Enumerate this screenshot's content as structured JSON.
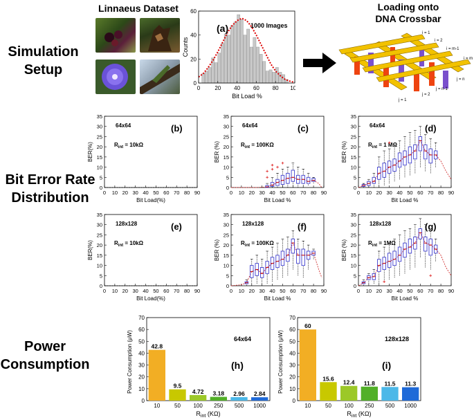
{
  "sections": {
    "simulation_l1": "Simulation",
    "simulation_l2": "Setup",
    "ber_l1": "Bit Error Rate",
    "ber_l2": "Distribution",
    "power_l1": "Power",
    "power_l2": "Consumption"
  },
  "headers": {
    "dataset": "Linnaeus Dataset",
    "crossbar_l1": "Loading onto",
    "crossbar_l2": "DNA Crossbar"
  },
  "crossbar_labels": {
    "i1": "i = 1",
    "i2": "i = 2",
    "im1": "i = m-1",
    "im": "i = m",
    "j1": "j = 1",
    "j2": "j = 2",
    "jn1": "j = n-1",
    "jn": "j = n"
  },
  "colors": {
    "hist_bar": "#c8c8c8",
    "hist_fit": "#dd0000",
    "box": "#4040d0",
    "median": "#c00000",
    "outlier": "#e03030",
    "trend": "#d03030",
    "crossbar_yellow": "#f2c200",
    "crossbar_red": "#ee4410",
    "crossbar_purple": "#7a50cc"
  },
  "chart_data": [
    {
      "id": "a",
      "type": "bar",
      "label": "(a)",
      "annotation": "1000 Images",
      "xlabel": "Bit Load %",
      "ylabel": "Counts",
      "xlim": [
        0,
        100
      ],
      "ylim": [
        0,
        60
      ],
      "xticks": [
        "0",
        "20",
        "40",
        "60",
        "80",
        "100"
      ],
      "yticks": [
        "0",
        "20",
        "40",
        "60"
      ],
      "bin_width": 3.33,
      "bin_left": [
        0,
        3.33,
        6.67,
        10,
        13.33,
        16.67,
        20,
        23.33,
        26.67,
        30,
        33.33,
        36.67,
        40,
        43.33,
        46.67,
        50,
        53.33,
        56.67,
        60,
        63.33,
        66.67,
        70,
        73.33,
        76.67,
        80,
        83.33,
        86.67,
        90,
        93.33,
        96.67
      ],
      "counts": [
        0,
        8,
        10,
        13,
        21,
        17,
        25,
        33,
        41,
        40,
        48,
        51,
        57,
        53,
        40,
        45,
        30,
        38,
        30,
        24,
        18,
        10,
        11,
        9,
        13,
        9,
        7,
        3,
        0,
        0
      ],
      "fit_x": [
        0,
        5,
        10,
        15,
        20,
        25,
        30,
        35,
        40,
        45,
        50,
        55,
        60,
        65,
        70,
        75,
        80,
        85,
        90,
        95,
        100
      ],
      "fit_y": [
        5,
        8,
        13,
        19,
        26,
        34,
        42,
        48,
        52,
        54,
        52,
        47,
        40,
        32,
        24,
        16,
        10,
        6,
        3,
        1.5,
        0.5
      ]
    },
    {
      "id": "b",
      "type": "box",
      "label": "(b)",
      "size": "64x64",
      "rint_sub": "int",
      "rint_value": " = 10kΩ",
      "xlabel": "Bit Load(%)",
      "ylabel": "BER(%)",
      "xlim": [
        0,
        90
      ],
      "ylim": [
        0,
        35
      ],
      "xticks": [
        "0",
        "10",
        "20",
        "30",
        "40",
        "50",
        "60",
        "70",
        "80",
        "90"
      ],
      "yticks": [
        "0",
        "5",
        "10",
        "15",
        "20",
        "25",
        "30",
        "35"
      ],
      "boxes": [],
      "trend_x": [
        0,
        90
      ],
      "trend_y": [
        0,
        0
      ]
    },
    {
      "id": "c",
      "type": "box",
      "label": "(c)",
      "size": "64x64",
      "rint_sub": "int",
      "rint_value": " = 100KΩ",
      "xlabel": "Bit Load %",
      "ylabel": "BER (%)",
      "xlim": [
        0,
        90
      ],
      "ylim": [
        0,
        35
      ],
      "xticks": [
        "0",
        "10",
        "20",
        "30",
        "40",
        "50",
        "60",
        "70",
        "80",
        "90"
      ],
      "yticks": [
        "0",
        "5",
        "10",
        "15",
        "20",
        "25",
        "30",
        "35"
      ],
      "boxes": [
        {
          "x": 35,
          "q1": 0,
          "med": 0.3,
          "q3": 1,
          "lo": 0,
          "hi": 2,
          "out": [
            5,
            8
          ]
        },
        {
          "x": 40,
          "q1": 0.5,
          "med": 1.2,
          "q3": 2.5,
          "lo": 0,
          "hi": 5,
          "out": [
            9,
            11
          ]
        },
        {
          "x": 45,
          "q1": 1,
          "med": 2.5,
          "q3": 4,
          "lo": 0,
          "hi": 7,
          "out": [
            10
          ]
        },
        {
          "x": 50,
          "q1": 1.5,
          "med": 3.5,
          "q3": 6,
          "lo": 0,
          "hi": 9,
          "out": [
            12
          ]
        },
        {
          "x": 55,
          "q1": 2,
          "med": 4.5,
          "q3": 7,
          "lo": 0,
          "hi": 10,
          "out": []
        },
        {
          "x": 60,
          "q1": 3,
          "med": 5,
          "q3": 8.5,
          "lo": 0,
          "hi": 12,
          "out": []
        },
        {
          "x": 65,
          "q1": 2,
          "med": 4,
          "q3": 6,
          "lo": 0,
          "hi": 10,
          "out": []
        },
        {
          "x": 70,
          "q1": 2,
          "med": 4,
          "q3": 6,
          "lo": 0,
          "hi": 9,
          "out": []
        },
        {
          "x": 75,
          "q1": 2,
          "med": 3,
          "q3": 5,
          "lo": 1,
          "hi": 7,
          "out": []
        },
        {
          "x": 80,
          "q1": 3,
          "med": 3.5,
          "q3": 4.5,
          "lo": 2,
          "hi": 5,
          "out": []
        }
      ],
      "trend_x": [
        0,
        25,
        35,
        40,
        45,
        50,
        55,
        60,
        65,
        70,
        75,
        80,
        85,
        88
      ],
      "trend_y": [
        0,
        0,
        0.3,
        1.2,
        2.5,
        3.5,
        4.5,
        5,
        4,
        4,
        3,
        3.5,
        2,
        0
      ]
    },
    {
      "id": "d",
      "type": "box",
      "label": "(d)",
      "size": "64x64",
      "rint_sub": "int",
      "rint_value": " = 1 MΩ",
      "xlabel": "Bit Load %",
      "ylabel": "BER (%)",
      "xlim": [
        0,
        90
      ],
      "ylim": [
        0,
        35
      ],
      "xticks": [
        "0",
        "10",
        "20",
        "30",
        "40",
        "50",
        "60",
        "70",
        "80",
        "90"
      ],
      "yticks": [
        "0",
        "5",
        "10",
        "15",
        "20",
        "25",
        "30",
        "35"
      ],
      "boxes": [
        {
          "x": 5,
          "q1": 0.5,
          "med": 1,
          "q3": 1.5,
          "lo": 0,
          "hi": 2,
          "out": []
        },
        {
          "x": 10,
          "q1": 1,
          "med": 2,
          "q3": 3,
          "lo": 0,
          "hi": 4,
          "out": []
        },
        {
          "x": 15,
          "q1": 2,
          "med": 3,
          "q3": 5,
          "lo": 0,
          "hi": 7,
          "out": []
        },
        {
          "x": 20,
          "q1": 4,
          "med": 7,
          "q3": 10,
          "lo": 0,
          "hi": 15,
          "out": []
        },
        {
          "x": 25,
          "q1": 5,
          "med": 8,
          "q3": 12,
          "lo": 1,
          "hi": 18,
          "out": []
        },
        {
          "x": 30,
          "q1": 7,
          "med": 10,
          "q3": 13,
          "lo": 2,
          "hi": 19,
          "out": [
            22
          ]
        },
        {
          "x": 35,
          "q1": 8,
          "med": 11,
          "q3": 14,
          "lo": 3,
          "hi": 21,
          "out": []
        },
        {
          "x": 40,
          "q1": 10,
          "med": 13,
          "q3": 17,
          "lo": 4,
          "hi": 23,
          "out": []
        },
        {
          "x": 45,
          "q1": 11,
          "med": 15,
          "q3": 18,
          "lo": 5,
          "hi": 25,
          "out": []
        },
        {
          "x": 50,
          "q1": 12,
          "med": 16,
          "q3": 20,
          "lo": 6,
          "hi": 27,
          "out": []
        },
        {
          "x": 55,
          "q1": 14,
          "med": 18,
          "q3": 21,
          "lo": 7,
          "hi": 28,
          "out": []
        },
        {
          "x": 60,
          "q1": 18,
          "med": 23,
          "q3": 25,
          "lo": 10,
          "hi": 30,
          "out": []
        },
        {
          "x": 65,
          "q1": 14,
          "med": 18,
          "q3": 21,
          "lo": 8,
          "hi": 26,
          "out": []
        },
        {
          "x": 70,
          "q1": 12,
          "med": 16,
          "q3": 19,
          "lo": 7,
          "hi": 24,
          "out": []
        },
        {
          "x": 75,
          "q1": 14,
          "med": 16,
          "q3": 18,
          "lo": 10,
          "hi": 22,
          "out": []
        }
      ],
      "trend_x": [
        0,
        5,
        10,
        15,
        20,
        25,
        30,
        35,
        40,
        45,
        50,
        55,
        60,
        65,
        70,
        75,
        80,
        85,
        90
      ],
      "trend_y": [
        0,
        1,
        2,
        3,
        7,
        8,
        10,
        11,
        13,
        15,
        16,
        18,
        23,
        18,
        16,
        16,
        13,
        8,
        4
      ]
    },
    {
      "id": "e",
      "type": "box",
      "label": "(e)",
      "size": "128x128",
      "rint_sub": "int",
      "rint_value": " = 10kΩ",
      "xlabel": "Bit Load(%)",
      "ylabel": "BER(%)",
      "xlim": [
        0,
        90
      ],
      "ylim": [
        0,
        35
      ],
      "xticks": [
        "0",
        "10",
        "20",
        "30",
        "40",
        "50",
        "60",
        "70",
        "80",
        "90"
      ],
      "yticks": [
        "0",
        "5",
        "10",
        "15",
        "20",
        "25",
        "30",
        "35"
      ],
      "boxes": [],
      "trend_x": [
        0,
        90
      ],
      "trend_y": [
        0,
        0
      ]
    },
    {
      "id": "f",
      "type": "box",
      "label": "(f)",
      "size": "128x128",
      "rint_sub": "int",
      "rint_value": " = 100KΩ",
      "xlabel": "Bit Load %",
      "ylabel": "BER (%)",
      "xlim": [
        0,
        90
      ],
      "ylim": [
        0,
        35
      ],
      "xticks": [
        "0",
        "10",
        "20",
        "30",
        "40",
        "50",
        "60",
        "70",
        "80",
        "90"
      ],
      "yticks": [
        "0",
        "5",
        "10",
        "15",
        "20",
        "25",
        "30",
        "35"
      ],
      "boxes": [
        {
          "x": 15,
          "q1": 1,
          "med": 1.5,
          "q3": 2,
          "lo": 0,
          "hi": 3,
          "out": []
        },
        {
          "x": 20,
          "q1": 4,
          "med": 7,
          "q3": 10,
          "lo": 0,
          "hi": 13,
          "out": []
        },
        {
          "x": 25,
          "q1": 5,
          "med": 8,
          "q3": 11,
          "lo": 1,
          "hi": 15,
          "out": []
        },
        {
          "x": 30,
          "q1": 4,
          "med": 6,
          "q3": 9,
          "lo": 0,
          "hi": 13,
          "out": []
        },
        {
          "x": 35,
          "q1": 6,
          "med": 9,
          "q3": 12,
          "lo": 1,
          "hi": 17,
          "out": []
        },
        {
          "x": 40,
          "q1": 8,
          "med": 11,
          "q3": 14,
          "lo": 2,
          "hi": 19,
          "out": []
        },
        {
          "x": 45,
          "q1": 9,
          "med": 12,
          "q3": 15,
          "lo": 3,
          "hi": 21,
          "out": []
        },
        {
          "x": 50,
          "q1": 10,
          "med": 13,
          "q3": 17,
          "lo": 4,
          "hi": 23,
          "out": []
        },
        {
          "x": 55,
          "q1": 12,
          "med": 15,
          "q3": 18,
          "lo": 5,
          "hi": 24,
          "out": []
        },
        {
          "x": 60,
          "q1": 16,
          "med": 21,
          "q3": 23,
          "lo": 8,
          "hi": 27,
          "out": []
        },
        {
          "x": 65,
          "q1": 11,
          "med": 15,
          "q3": 18,
          "lo": 5,
          "hi": 23,
          "out": []
        },
        {
          "x": 70,
          "q1": 10,
          "med": 15,
          "q3": 18,
          "lo": 4,
          "hi": 22,
          "out": []
        },
        {
          "x": 75,
          "q1": 13,
          "med": 15,
          "q3": 17,
          "lo": 8,
          "hi": 20,
          "out": []
        },
        {
          "x": 80,
          "q1": 15,
          "med": 16,
          "q3": 17,
          "lo": 13,
          "hi": 18,
          "out": []
        }
      ],
      "trend_x": [
        0,
        10,
        15,
        20,
        25,
        30,
        35,
        40,
        45,
        50,
        55,
        60,
        65,
        70,
        75,
        80,
        85,
        88
      ],
      "trend_y": [
        0,
        0.5,
        1.5,
        7,
        8,
        6,
        9,
        11,
        12,
        13,
        15,
        21,
        15,
        15,
        15,
        16,
        8,
        4
      ]
    },
    {
      "id": "g",
      "type": "box",
      "label": "(g)",
      "size": "128x128",
      "rint_sub": "int",
      "rint_value": " = 1MΩ",
      "xlabel": "Bit Load %",
      "ylabel": "BER (%)",
      "xlim": [
        0,
        90
      ],
      "ylim": [
        0,
        35
      ],
      "xticks": [
        "0",
        "10",
        "20",
        "30",
        "40",
        "50",
        "60",
        "70",
        "80",
        "90"
      ],
      "yticks": [
        "0",
        "5",
        "10",
        "15",
        "20",
        "25",
        "30",
        "35"
      ],
      "boxes": [
        {
          "x": 5,
          "q1": 1,
          "med": 1.5,
          "q3": 2,
          "lo": 0,
          "hi": 3,
          "out": []
        },
        {
          "x": 10,
          "q1": 3,
          "med": 4,
          "q3": 5,
          "lo": 1,
          "hi": 6,
          "out": []
        },
        {
          "x": 15,
          "q1": 3,
          "med": 4.5,
          "q3": 6,
          "lo": 1,
          "hi": 8,
          "out": []
        },
        {
          "x": 20,
          "q1": 7,
          "med": 10,
          "q3": 13,
          "lo": 1,
          "hi": 17,
          "out": []
        },
        {
          "x": 25,
          "q1": 8,
          "med": 11,
          "q3": 14,
          "lo": 2,
          "hi": 19,
          "out": [
            2
          ]
        },
        {
          "x": 30,
          "q1": 9,
          "med": 12,
          "q3": 16,
          "lo": 3,
          "hi": 21,
          "out": []
        },
        {
          "x": 35,
          "q1": 10,
          "med": 13,
          "q3": 17,
          "lo": 4,
          "hi": 23,
          "out": []
        },
        {
          "x": 40,
          "q1": 12,
          "med": 15,
          "q3": 19,
          "lo": 5,
          "hi": 25,
          "out": []
        },
        {
          "x": 45,
          "q1": 14,
          "med": 18,
          "q3": 21,
          "lo": 6,
          "hi": 27,
          "out": []
        },
        {
          "x": 50,
          "q1": 16,
          "med": 19,
          "q3": 23,
          "lo": 8,
          "hi": 28,
          "out": []
        },
        {
          "x": 55,
          "q1": 18,
          "med": 21,
          "q3": 24,
          "lo": 9,
          "hi": 30,
          "out": []
        },
        {
          "x": 60,
          "q1": 23,
          "med": 26,
          "q3": 28,
          "lo": 14,
          "hi": 33,
          "out": []
        },
        {
          "x": 65,
          "q1": 17,
          "med": 21,
          "q3": 24,
          "lo": 9,
          "hi": 30,
          "out": []
        },
        {
          "x": 70,
          "q1": 15,
          "med": 20,
          "q3": 23,
          "lo": 8,
          "hi": 27,
          "out": [
            5
          ]
        },
        {
          "x": 75,
          "q1": 16,
          "med": 18,
          "q3": 20,
          "lo": 12,
          "hi": 23,
          "out": []
        }
      ],
      "trend_x": [
        0,
        5,
        10,
        15,
        20,
        25,
        30,
        35,
        40,
        45,
        50,
        55,
        60,
        65,
        70,
        75,
        80,
        85,
        90
      ],
      "trend_y": [
        0,
        1.5,
        4,
        4.5,
        10,
        11,
        12,
        13,
        15,
        18,
        19,
        21,
        26,
        21,
        20,
        18,
        15,
        9,
        5
      ]
    },
    {
      "id": "h",
      "type": "bar",
      "label": "(h)",
      "size": "64x64",
      "xlabel_main": "R",
      "xlabel_sub": "int",
      "xlabel_unit": " (KΩ)",
      "ylabel": "Power Consumption (μW)",
      "ylim": [
        0,
        70
      ],
      "yticks": [
        "0",
        "10",
        "20",
        "30",
        "40",
        "50",
        "60",
        "70"
      ],
      "categories": [
        "10",
        "50",
        "100",
        "250",
        "500",
        "1000"
      ],
      "values": [
        42.8,
        9.5,
        4.72,
        3.18,
        2.96,
        2.84
      ],
      "value_labels": [
        "42.8",
        "9.5",
        "4.72",
        "3.18",
        "2.96",
        "2.84"
      ],
      "colors": [
        "#f2ae24",
        "#c8c800",
        "#9cc828",
        "#52b028",
        "#4cb8e8",
        "#1f6ad8"
      ]
    },
    {
      "id": "i",
      "type": "bar",
      "label": "(i)",
      "size": "128x128",
      "xlabel_main": "R",
      "xlabel_sub": "int",
      "xlabel_unit": " (KΩ)",
      "ylabel": "Power Consumption (μW)",
      "ylim": [
        0,
        70
      ],
      "yticks": [
        "0",
        "10",
        "20",
        "30",
        "40",
        "50",
        "60",
        "70"
      ],
      "categories": [
        "10",
        "50",
        "100",
        "250",
        "500",
        "1000"
      ],
      "values": [
        60,
        15.6,
        12.4,
        11.8,
        11.5,
        11.3
      ],
      "value_labels": [
        "60",
        "15.6",
        "12.4",
        "11.8",
        "11.5",
        "11.3"
      ],
      "colors": [
        "#f2ae24",
        "#c8c800",
        "#9cc828",
        "#52b028",
        "#4cb8e8",
        "#1f6ad8"
      ]
    }
  ]
}
